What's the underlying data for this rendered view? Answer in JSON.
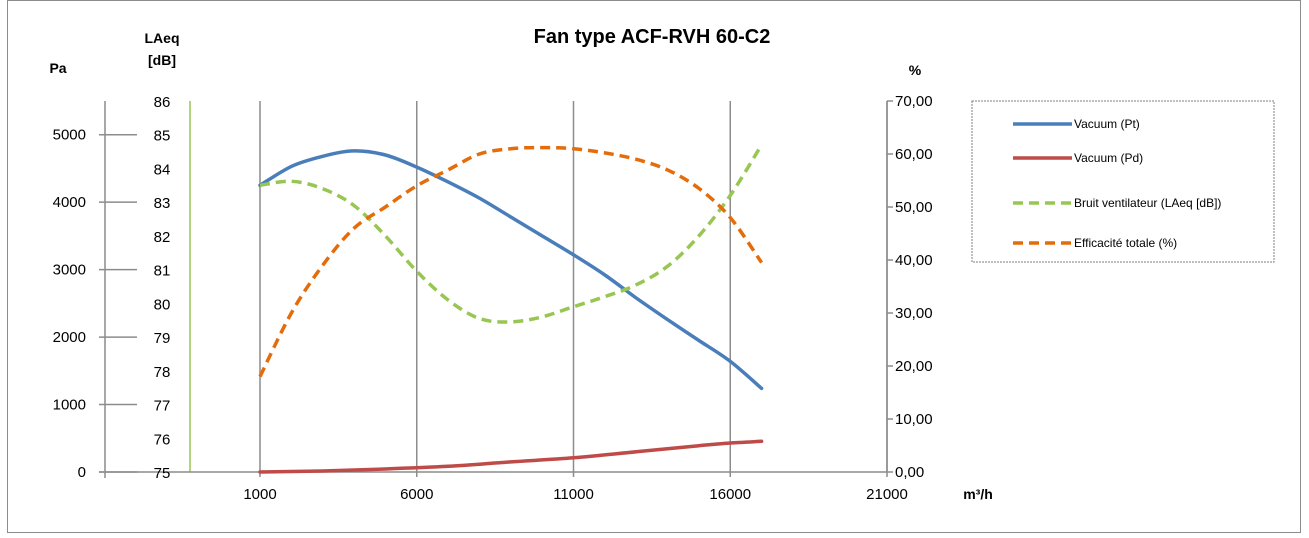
{
  "chart_data": {
    "type": "line",
    "title": "Fan type ACF-RVH 60-C2",
    "xlabel": "m³/h",
    "x_ticks": [
      "1000",
      "6000",
      "11000",
      "16000",
      "21000"
    ],
    "xlim": [
      1000,
      21000
    ],
    "axes": {
      "pa": {
        "label": "Pa",
        "ylim": [
          0,
          5500
        ],
        "ticks": [
          "0",
          "1000",
          "2000",
          "3000",
          "4000",
          "5000"
        ]
      },
      "laeq": {
        "label_line1": "LAeq",
        "label_line2": "[dB]",
        "ylim": [
          75,
          86
        ],
        "ticks": [
          "75",
          "76",
          "77",
          "78",
          "79",
          "80",
          "81",
          "82",
          "83",
          "84",
          "85",
          "86"
        ]
      },
      "pct": {
        "label": "%",
        "ylim": [
          0,
          70
        ],
        "ticks": [
          "0,00",
          "10,00",
          "20,00",
          "30,00",
          "40,00",
          "50,00",
          "60,00",
          "70,00"
        ]
      }
    },
    "grid": "vertical",
    "legend_position": "right",
    "series": [
      {
        "name": "Vacuum (Pt)",
        "axis": "pa",
        "color": "#4a7ebb",
        "dash": false,
        "x": [
          1000,
          2000,
          3000,
          4000,
          5000,
          6000,
          7000,
          8000,
          9000,
          10000,
          11000,
          12000,
          13000,
          14000,
          15000,
          16000,
          17000
        ],
        "y": [
          4250,
          4530,
          4680,
          4760,
          4700,
          4520,
          4300,
          4060,
          3780,
          3500,
          3220,
          2920,
          2580,
          2260,
          1950,
          1640,
          1240
        ]
      },
      {
        "name": "Vacuum (Pd)",
        "axis": "pa",
        "color": "#be4b48",
        "dash": false,
        "x": [
          1000,
          3000,
          5000,
          7000,
          9000,
          11000,
          13000,
          15000,
          16000,
          17000
        ],
        "y": [
          0,
          15,
          45,
          85,
          150,
          210,
          300,
          390,
          430,
          455
        ]
      },
      {
        "name": "Bruit ventilateur (LAeq [dB])",
        "axis": "laeq",
        "color": "#98c653",
        "dash": true,
        "x": [
          1000,
          2000,
          3000,
          4000,
          5000,
          6000,
          7000,
          8000,
          9000,
          10000,
          11000,
          12000,
          13000,
          14000,
          15000,
          16000,
          17000
        ],
        "y": [
          83.5,
          83.62,
          83.4,
          82.9,
          82.0,
          80.95,
          80.1,
          79.55,
          79.45,
          79.6,
          79.9,
          80.2,
          80.55,
          81.1,
          82.0,
          83.2,
          84.7
        ]
      },
      {
        "name": "Efficacité totale (%)",
        "axis": "pct",
        "color": "#e46c0a",
        "dash": true,
        "x": [
          1000,
          2000,
          3000,
          4000,
          5000,
          6000,
          7000,
          8000,
          9000,
          10000,
          11000,
          12000,
          13000,
          14000,
          15000,
          16000,
          17000
        ],
        "y": [
          18,
          30,
          39,
          46,
          50,
          54,
          57,
          60,
          61,
          61.2,
          61,
          60.2,
          59,
          57,
          53.5,
          48,
          39.5
        ]
      }
    ]
  }
}
